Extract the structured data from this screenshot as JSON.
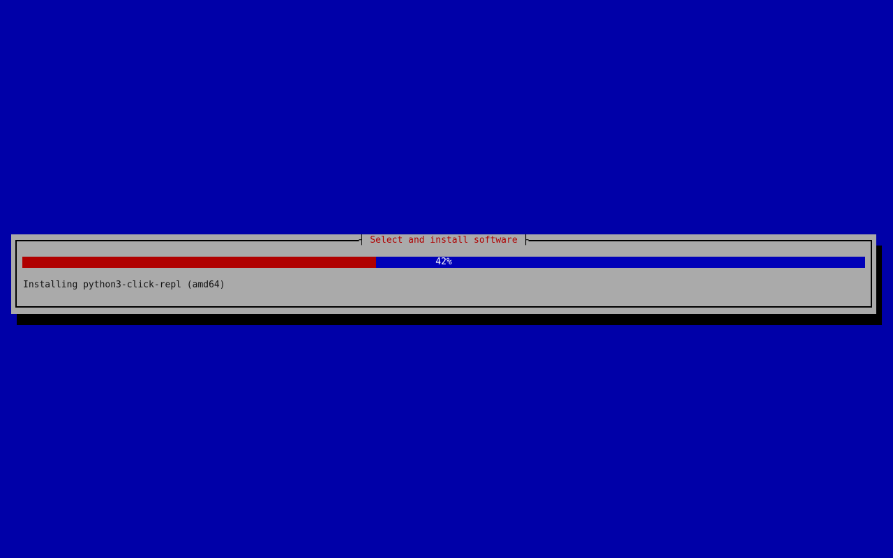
{
  "colors": {
    "background": "#0000a8",
    "dialog": "#aaaaaa",
    "title_red": "#b00000",
    "progress_fill": "#b00000",
    "progress_track": "#0000b8",
    "percent_text": "#ffffff"
  },
  "dialog": {
    "title": "Select and install software",
    "tick_left": "┤",
    "tick_right": "├"
  },
  "progress": {
    "percent_value": 42,
    "percent_label": "42%"
  },
  "status": {
    "text": "Installing python3-click-repl (amd64)"
  }
}
